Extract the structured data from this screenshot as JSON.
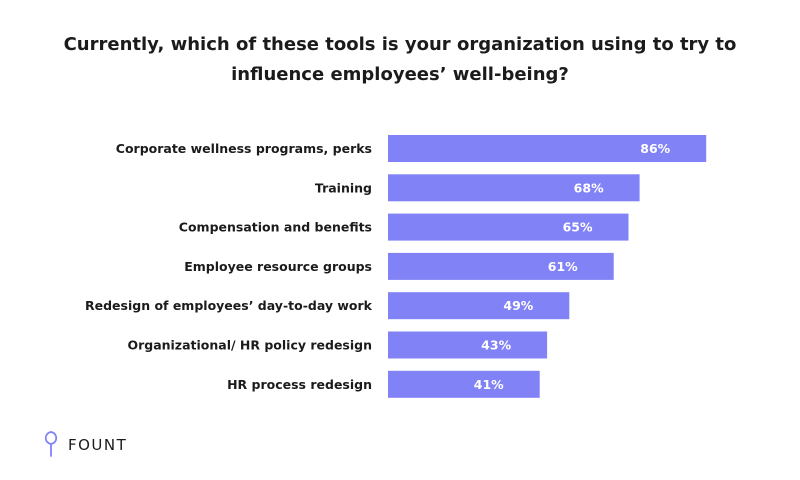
{
  "chart_data": {
    "type": "bar",
    "orientation": "horizontal",
    "title": "Currently, which of these tools is your organization using to try to influence employees’ well-being?",
    "categories": [
      "Corporate wellness programs, perks",
      "Training",
      "Compensation and benefits",
      "Employee resource groups",
      "Redesign of employees’ day-to-day work",
      "Organizational/ HR policy redesign",
      "HR process redesign"
    ],
    "values": [
      86,
      68,
      65,
      61,
      49,
      43,
      41
    ],
    "value_labels": [
      "86%",
      "68%",
      "65%",
      "61%",
      "49%",
      "43%",
      "41%"
    ],
    "xlim": [
      0,
      100
    ],
    "unit": "%",
    "grid": false,
    "bar_color": "#8282f7"
  },
  "brand": {
    "logo_text": "FOUNT",
    "logo_icon": "fount-logo-icon",
    "color": "#8282f7"
  }
}
